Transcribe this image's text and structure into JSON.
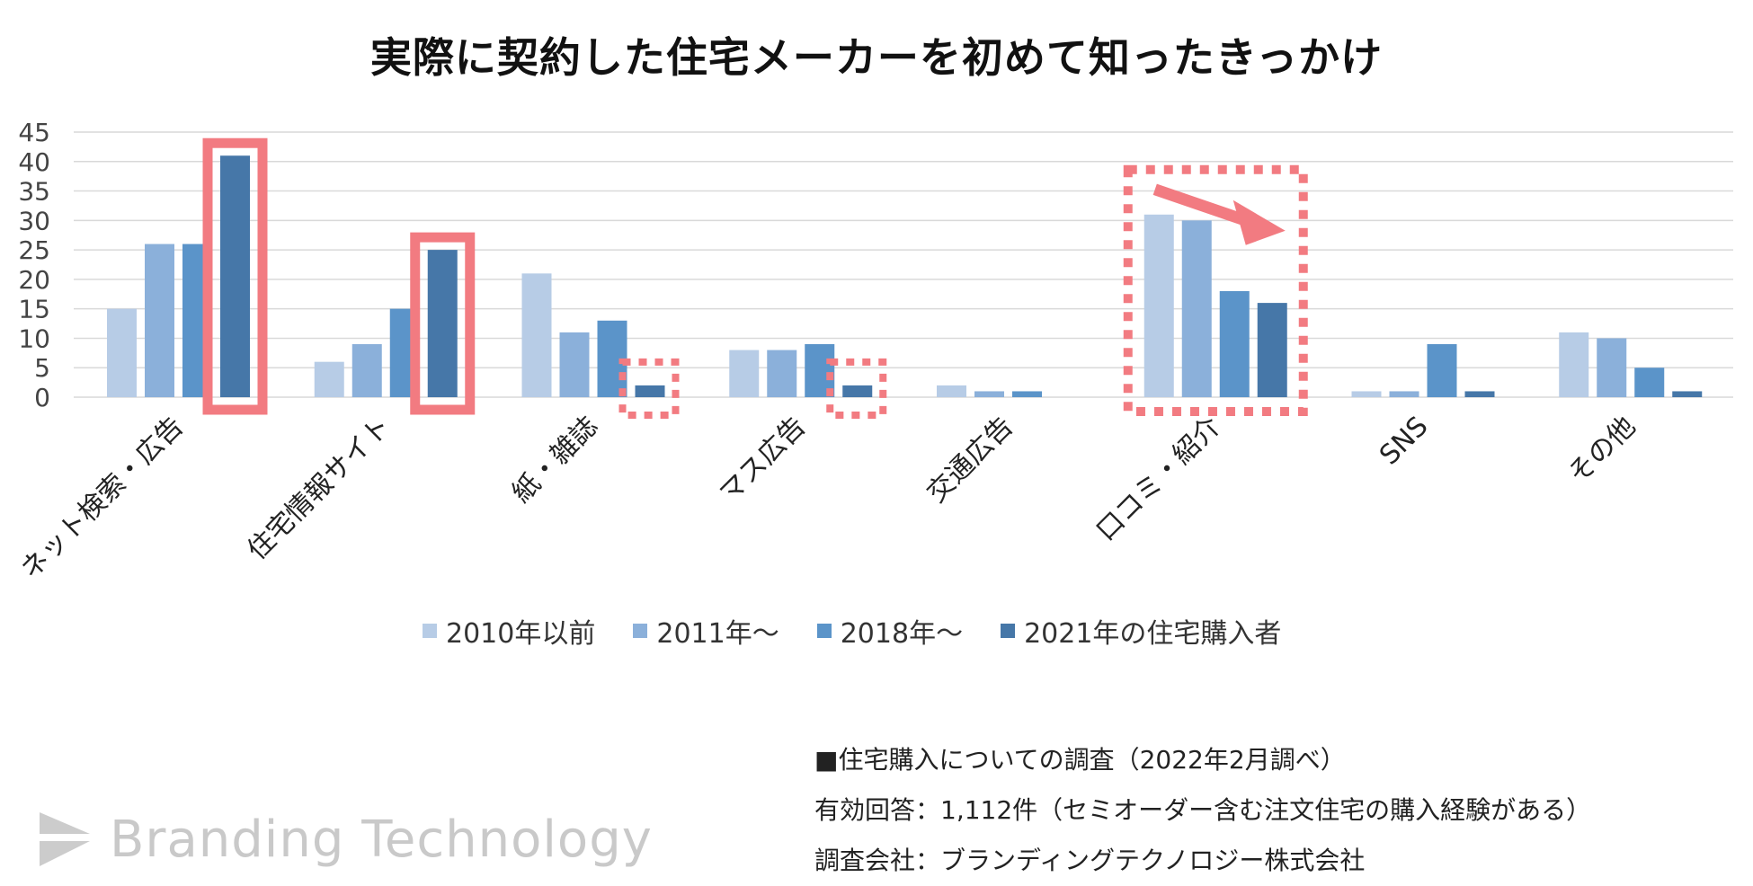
{
  "title": "実際に契約した住宅メーカーを初めて知ったきっかけ",
  "chart_data": {
    "type": "bar",
    "title": "実際に契約した住宅メーカーを初めて知ったきっかけ",
    "xlabel": "",
    "ylabel": "",
    "ylim": [
      0,
      45
    ],
    "yticks": [
      0,
      5,
      10,
      15,
      20,
      25,
      30,
      35,
      40,
      45
    ],
    "grid": true,
    "legend_position": "bottom",
    "categories": [
      "ネット検索・広告",
      "住宅情報サイト",
      "紙・雑誌",
      "マス広告",
      "交通広告",
      "口コミ・紹介",
      "SNS",
      "その他"
    ],
    "series": [
      {
        "name": "2010年以前",
        "color": "#b7cce6",
        "values": [
          15,
          6,
          21,
          8,
          2,
          31,
          1,
          11
        ]
      },
      {
        "name": "2011年～",
        "color": "#8bb0da",
        "values": [
          26,
          9,
          11,
          8,
          1,
          30,
          1,
          10
        ]
      },
      {
        "name": "2018年～",
        "color": "#5b94c9",
        "values": [
          26,
          15,
          13,
          9,
          1,
          18,
          9,
          5
        ]
      },
      {
        "name": "2021年の住宅購入者",
        "color": "#4677a8",
        "values": [
          41,
          25,
          2,
          2,
          0,
          16,
          1,
          1
        ]
      }
    ],
    "highlights": [
      {
        "category": "ネット検索・広告",
        "series": "2021年の住宅購入者",
        "style": "solid"
      },
      {
        "category": "住宅情報サイト",
        "series": "2021年の住宅購入者",
        "style": "solid"
      },
      {
        "category": "紙・雑誌",
        "series": "2021年の住宅購入者",
        "style": "dotted"
      },
      {
        "category": "マス広告",
        "series": "2021年の住宅購入者",
        "style": "dotted"
      },
      {
        "category": "口コミ・紹介",
        "series": "all",
        "style": "dotted",
        "arrow": "decreasing"
      }
    ],
    "highlight_color": "#f27b81"
  },
  "notes": [
    "■住宅購入についての調査（2022年2月調べ）",
    "有効回答：1,112件（セミオーダー含む注文住宅の購入経験がある）",
    "調査会社：ブランディングテクノロジー株式会社"
  ],
  "brand": {
    "name": "Branding Technology",
    "logo_icon": "chevron-logo-icon",
    "color": "#c9c9c9"
  }
}
